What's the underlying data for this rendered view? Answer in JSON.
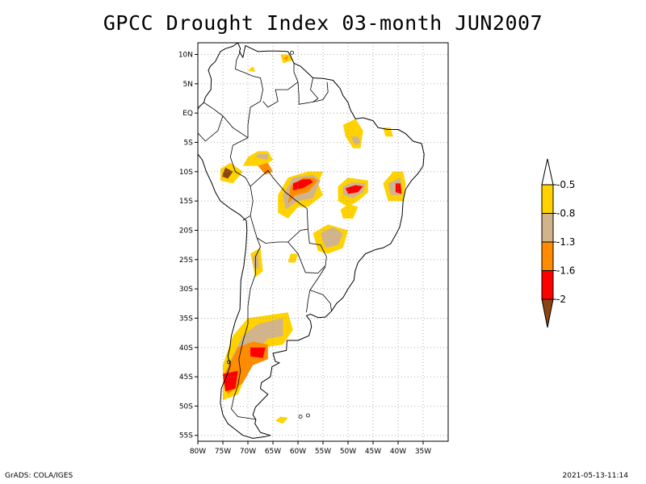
{
  "title": "GPCC Drought Index 03-month JUN2007",
  "footer": {
    "credit": "GrADS: COLA/IGES",
    "timestamp": "2021-05-13-11:14"
  },
  "map": {
    "lon_range": [
      -80,
      -30
    ],
    "lat_range": [
      -56,
      12
    ],
    "lat_ticks": [
      {
        "value": 10,
        "label": "10N"
      },
      {
        "value": 5,
        "label": "5N"
      },
      {
        "value": 0,
        "label": "EQ"
      },
      {
        "value": -5,
        "label": "5S"
      },
      {
        "value": -10,
        "label": "10S"
      },
      {
        "value": -15,
        "label": "15S"
      },
      {
        "value": -20,
        "label": "20S"
      },
      {
        "value": -25,
        "label": "25S"
      },
      {
        "value": -30,
        "label": "30S"
      },
      {
        "value": -35,
        "label": "35S"
      },
      {
        "value": -40,
        "label": "40S"
      },
      {
        "value": -45,
        "label": "45S"
      },
      {
        "value": -50,
        "label": "50S"
      },
      {
        "value": -55,
        "label": "55S"
      }
    ],
    "lon_ticks": [
      {
        "value": -80,
        "label": "80W"
      },
      {
        "value": -75,
        "label": "75W"
      },
      {
        "value": -70,
        "label": "70W"
      },
      {
        "value": -65,
        "label": "65W"
      },
      {
        "value": -60,
        "label": "60W"
      },
      {
        "value": -55,
        "label": "55W"
      },
      {
        "value": -50,
        "label": "50W"
      },
      {
        "value": -45,
        "label": "45W"
      },
      {
        "value": -40,
        "label": "40W"
      },
      {
        "value": -35,
        "label": "35W"
      }
    ],
    "grid": true
  },
  "colors": {
    "yellow": "#ffd200",
    "tan": "#d2b48c",
    "orange": "#ff8c00",
    "red": "#ff0000",
    "brown": "#8b4513",
    "white": "#ffffff",
    "coast": "#000000"
  },
  "legend": {
    "labels": [
      "-0.5",
      "-0.8",
      "-1.3",
      "-1.6",
      "-2"
    ],
    "bands": [
      "white",
      "yellow",
      "tan",
      "orange",
      "red",
      "brown"
    ]
  },
  "drought_regions": [
    {
      "level": "yellow",
      "pts": [
        [
          -56,
          -12
        ],
        [
          -55,
          -14
        ],
        [
          -58,
          -16
        ],
        [
          -60,
          -16
        ],
        [
          -62,
          -18
        ],
        [
          -64,
          -17
        ],
        [
          -64,
          -14
        ],
        [
          -62,
          -11
        ],
        [
          -58,
          -10
        ],
        [
          -55,
          -10
        ]
      ]
    },
    {
      "level": "tan",
      "pts": [
        [
          -55.5,
          -11.5
        ],
        [
          -57,
          -14.5
        ],
        [
          -60,
          -15
        ],
        [
          -62.5,
          -16.5
        ],
        [
          -63,
          -14
        ],
        [
          -61,
          -11
        ],
        [
          -57,
          -10.5
        ]
      ]
    },
    {
      "level": "orange",
      "pts": [
        [
          -56,
          -11.5
        ],
        [
          -58,
          -13.5
        ],
        [
          -60.5,
          -14
        ],
        [
          -62,
          -15.5
        ],
        [
          -61.5,
          -12.5
        ],
        [
          -59,
          -11
        ],
        [
          -57,
          -11
        ]
      ]
    },
    {
      "level": "red",
      "pts": [
        [
          -57,
          -11.8
        ],
        [
          -59,
          -12.8
        ],
        [
          -61,
          -13.2
        ],
        [
          -61,
          -12
        ],
        [
          -59,
          -11.3
        ],
        [
          -57.5,
          -11.3
        ]
      ]
    },
    {
      "level": "yellow",
      "pts": [
        [
          -46,
          -11.5
        ],
        [
          -46,
          -13.5
        ],
        [
          -48,
          -15
        ],
        [
          -50,
          -16
        ],
        [
          -52,
          -15
        ],
        [
          -52,
          -12.5
        ],
        [
          -50,
          -11
        ]
      ]
    },
    {
      "level": "tan",
      "pts": [
        [
          -46.5,
          -12
        ],
        [
          -47,
          -13.5
        ],
        [
          -49,
          -14.5
        ],
        [
          -51,
          -14
        ],
        [
          -51,
          -12.5
        ],
        [
          -49,
          -11.8
        ]
      ]
    },
    {
      "level": "red",
      "pts": [
        [
          -47,
          -12.5
        ],
        [
          -48,
          -13.5
        ],
        [
          -50,
          -13.8
        ],
        [
          -50.5,
          -12.8
        ],
        [
          -48.5,
          -12.3
        ]
      ]
    },
    {
      "level": "yellow",
      "pts": [
        [
          -48,
          -16
        ],
        [
          -49,
          -18
        ],
        [
          -51,
          -18
        ],
        [
          -51.5,
          -16.5
        ],
        [
          -50,
          -15.5
        ]
      ]
    },
    {
      "level": "yellow",
      "pts": [
        [
          -39,
          -10
        ],
        [
          -38.5,
          -12
        ],
        [
          -39,
          -15
        ],
        [
          -42,
          -15
        ],
        [
          -43,
          -12
        ],
        [
          -41,
          -10
        ]
      ]
    },
    {
      "level": "tan",
      "pts": [
        [
          -39.5,
          -11
        ],
        [
          -39.3,
          -14
        ],
        [
          -41.5,
          -14
        ],
        [
          -42,
          -12
        ]
      ]
    },
    {
      "level": "red",
      "pts": [
        [
          -39.5,
          -12
        ],
        [
          -39.3,
          -13.8
        ],
        [
          -40.5,
          -13.5
        ],
        [
          -40.5,
          -12
        ]
      ]
    },
    {
      "level": "yellow",
      "pts": [
        [
          -50,
          -20
        ],
        [
          -51,
          -23
        ],
        [
          -54,
          -24
        ],
        [
          -56,
          -23.5
        ],
        [
          -57,
          -20.5
        ],
        [
          -54,
          -19
        ]
      ]
    },
    {
      "level": "tan",
      "pts": [
        [
          -51,
          -20.5
        ],
        [
          -52,
          -22.5
        ],
        [
          -54.5,
          -23
        ],
        [
          -55.5,
          -20.5
        ],
        [
          -53,
          -19.5
        ]
      ]
    },
    {
      "level": "yellow",
      "pts": [
        [
          -70,
          -7.5
        ],
        [
          -71,
          -9
        ],
        [
          -67,
          -9
        ],
        [
          -65,
          -8
        ],
        [
          -66,
          -6.5
        ],
        [
          -68,
          -6.5
        ]
      ]
    },
    {
      "level": "tan",
      "pts": [
        [
          -68.5,
          -7.5
        ],
        [
          -66,
          -8
        ],
        [
          -66,
          -7
        ],
        [
          -68,
          -7
        ]
      ]
    },
    {
      "level": "yellow",
      "pts": [
        [
          -71,
          -10
        ],
        [
          -73,
          -12
        ],
        [
          -75.5,
          -11.5
        ],
        [
          -75.5,
          -9.5
        ],
        [
          -73.5,
          -8.5
        ]
      ]
    },
    {
      "level": "brown",
      "pts": [
        [
          -73,
          -10
        ],
        [
          -74,
          -11.2
        ],
        [
          -75.2,
          -10.8
        ],
        [
          -74.5,
          -9.3
        ]
      ]
    },
    {
      "level": "yellow",
      "pts": [
        [
          -51,
          -2
        ],
        [
          -50.5,
          -4
        ],
        [
          -49,
          -6
        ],
        [
          -47.5,
          -6
        ],
        [
          -47,
          -3
        ],
        [
          -48.5,
          -1
        ]
      ]
    },
    {
      "level": "tan",
      "pts": [
        [
          -49.5,
          -4
        ],
        [
          -48.5,
          -5.5
        ],
        [
          -47.5,
          -5
        ],
        [
          -48,
          -4
        ]
      ]
    },
    {
      "level": "yellow",
      "pts": [
        [
          -43,
          -2.5
        ],
        [
          -42.5,
          -4
        ],
        [
          -41,
          -4
        ],
        [
          -41.5,
          -2.5
        ]
      ]
    },
    {
      "level": "yellow",
      "pts": [
        [
          -67.5,
          -23
        ],
        [
          -67,
          -27
        ],
        [
          -68.5,
          -28
        ],
        [
          -69.5,
          -24
        ]
      ]
    },
    {
      "level": "tan",
      "pts": [
        [
          -68,
          -24
        ],
        [
          -67.8,
          -26.5
        ],
        [
          -68.8,
          -26.5
        ],
        [
          -69,
          -24.5
        ]
      ]
    },
    {
      "level": "yellow",
      "pts": [
        [
          -62,
          -34
        ],
        [
          -61,
          -37
        ],
        [
          -63,
          -39.5
        ],
        [
          -67,
          -40
        ],
        [
          -70,
          -44
        ],
        [
          -72,
          -48
        ],
        [
          -75,
          -49
        ],
        [
          -75,
          -43
        ],
        [
          -73,
          -38
        ],
        [
          -70,
          -35
        ]
      ]
    },
    {
      "level": "tan",
      "pts": [
        [
          -63,
          -35
        ],
        [
          -63,
          -38
        ],
        [
          -66,
          -38.5
        ],
        [
          -69,
          -41
        ],
        [
          -71,
          -45
        ],
        [
          -74,
          -47
        ],
        [
          -74,
          -43
        ],
        [
          -71,
          -38
        ],
        [
          -68,
          -36
        ]
      ]
    },
    {
      "level": "orange",
      "pts": [
        [
          -66,
          -39.5
        ],
        [
          -66,
          -42
        ],
        [
          -69,
          -43
        ],
        [
          -71,
          -46
        ],
        [
          -74,
          -48
        ],
        [
          -75,
          -45
        ],
        [
          -72,
          -40
        ],
        [
          -69,
          -39
        ]
      ]
    },
    {
      "level": "red",
      "pts": [
        [
          -66.5,
          -40
        ],
        [
          -67,
          -41.8
        ],
        [
          -69.5,
          -41.5
        ],
        [
          -69.5,
          -40
        ]
      ]
    },
    {
      "level": "red",
      "pts": [
        [
          -72,
          -44
        ],
        [
          -72.5,
          -47
        ],
        [
          -74.5,
          -47.5
        ],
        [
          -75,
          -44.5
        ]
      ]
    },
    {
      "level": "orange",
      "pts": [
        [
          -68,
          -9
        ],
        [
          -66.5,
          -10.5
        ],
        [
          -65,
          -10
        ],
        [
          -66,
          -8.5
        ]
      ]
    },
    {
      "level": "yellow",
      "pts": [
        [
          -60,
          -24
        ],
        [
          -60.5,
          -25.5
        ],
        [
          -62,
          -25.5
        ],
        [
          -61.5,
          -24
        ]
      ]
    },
    {
      "level": "yellow",
      "pts": [
        [
          -61.5,
          10
        ],
        [
          -61,
          9
        ],
        [
          -63,
          8.5
        ],
        [
          -63.5,
          10
        ]
      ]
    },
    {
      "level": "orange",
      "pts": [
        [
          -62,
          9.8
        ],
        [
          -62.2,
          9
        ],
        [
          -63,
          9.3
        ]
      ]
    },
    {
      "level": "yellow",
      "pts": [
        [
          -69,
          8
        ],
        [
          -68.5,
          7
        ],
        [
          -70,
          7.2
        ]
      ]
    },
    {
      "level": "yellow",
      "pts": [
        [
          -62,
          -52
        ],
        [
          -63,
          -53
        ],
        [
          -64.5,
          -52.5
        ],
        [
          -63.5,
          -51.8
        ]
      ]
    }
  ]
}
